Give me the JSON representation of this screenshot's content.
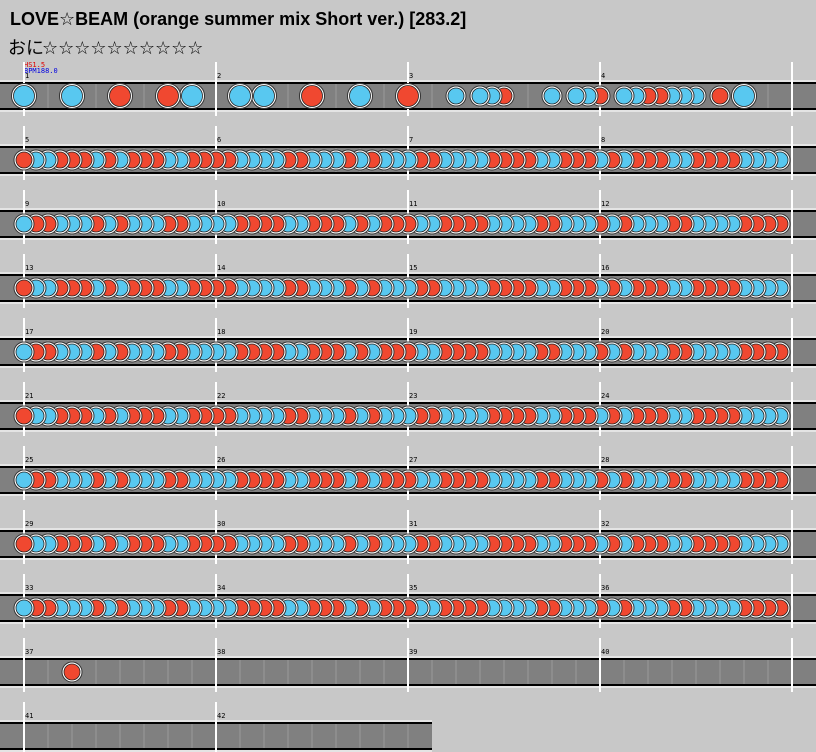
{
  "header": {
    "title": "LOVE☆BEAM (orange summer mix Short ver.) [283.2]",
    "course": "おに",
    "stars": "☆☆☆☆☆☆☆☆☆☆"
  },
  "speed": {
    "hs": "HS1.5",
    "bpm": "BPM188.0"
  },
  "measures": [
    "1",
    "2",
    "3",
    "4",
    "5",
    "6",
    "7",
    "8",
    "9",
    "10",
    "11",
    "12",
    "13",
    "14",
    "15",
    "16",
    "17",
    "18",
    "19",
    "20",
    "21",
    "22",
    "23",
    "24",
    "25",
    "26",
    "27",
    "28",
    "29",
    "30",
    "31",
    "32",
    "33",
    "34",
    "35",
    "36",
    "37",
    "38",
    "39",
    "40",
    "41",
    "42"
  ]
}
